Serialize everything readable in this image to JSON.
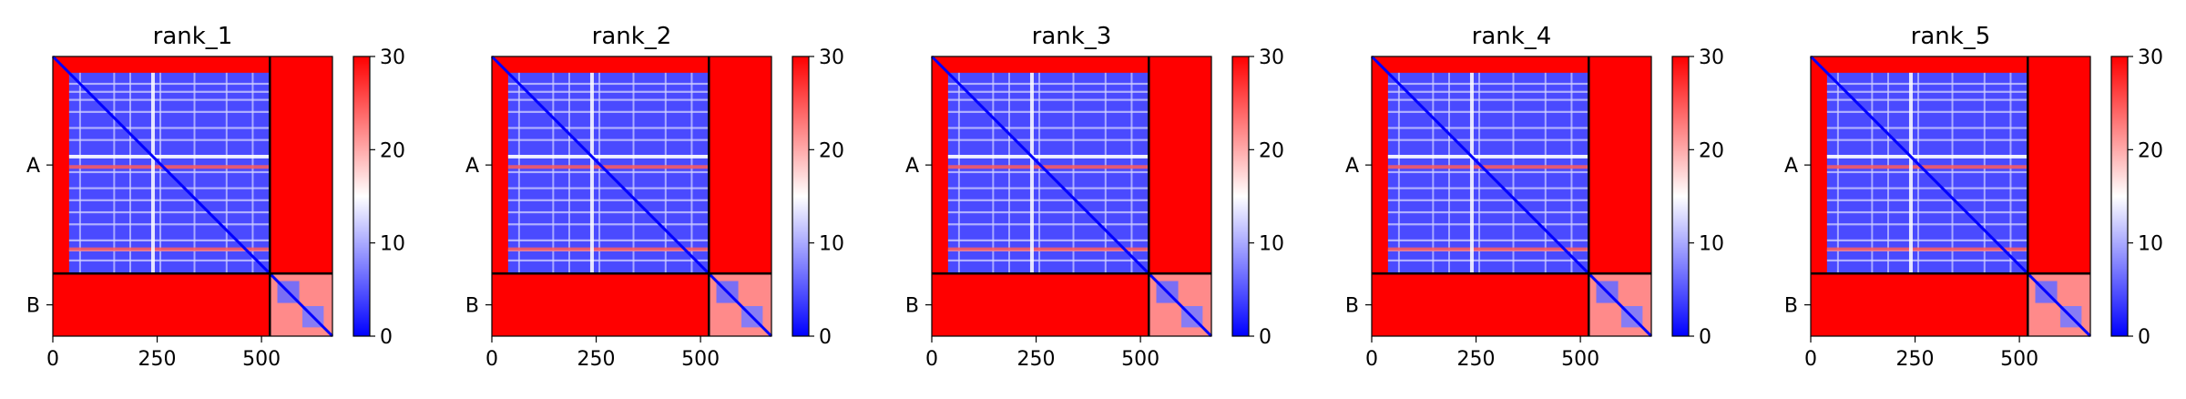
{
  "chart_data": {
    "type": "heatmap",
    "figure_kind": "pae_matrix_panels",
    "colormap": [
      "#0000ff",
      "#ffffff",
      "#ff0000"
    ],
    "colorbar": {
      "min": 0,
      "max": 30,
      "ticks": [
        0,
        10,
        20,
        30
      ]
    },
    "matrix_size": 670,
    "chain_boundary": 520,
    "chains": [
      "A",
      "B"
    ],
    "x_ticks": [
      0,
      250,
      500
    ],
    "panels": [
      {
        "title": "rank_1"
      },
      {
        "title": "rank_2"
      },
      {
        "title": "rank_3"
      },
      {
        "title": "rank_4"
      },
      {
        "title": "rank_5"
      }
    ]
  }
}
